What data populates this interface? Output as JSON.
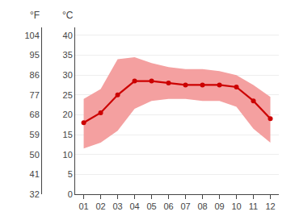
{
  "chart_data": {
    "type": "line",
    "x": [
      1,
      2,
      3,
      4,
      5,
      6,
      7,
      8,
      9,
      10,
      11,
      12
    ],
    "values": [
      18.0,
      20.5,
      25.0,
      28.5,
      28.5,
      28.0,
      27.5,
      27.5,
      27.5,
      27.0,
      23.5,
      19.0
    ],
    "min_values": [
      11.5,
      13.0,
      16.0,
      21.5,
      23.5,
      24.0,
      24.0,
      23.5,
      23.5,
      22.0,
      16.5,
      13.0
    ],
    "max_values": [
      24.0,
      26.5,
      34.0,
      34.5,
      33.0,
      32.0,
      31.5,
      31.5,
      31.0,
      30.0,
      27.5,
      24.5
    ],
    "color": "#cc0000",
    "band_color": "#f4a0a0",
    "marker": "circle",
    "xlim": [
      0.5,
      12.5
    ],
    "xticks": [
      {
        "value": 1,
        "label": "01"
      },
      {
        "value": 2,
        "label": "02"
      },
      {
        "value": 3,
        "label": "03"
      },
      {
        "value": 4,
        "label": "04"
      },
      {
        "value": 5,
        "label": "05"
      },
      {
        "value": 6,
        "label": "06"
      },
      {
        "value": 7,
        "label": "07"
      },
      {
        "value": 8,
        "label": "08"
      },
      {
        "value": 9,
        "label": "09"
      },
      {
        "value": 10,
        "label": "10"
      },
      {
        "value": 11,
        "label": "11"
      },
      {
        "value": 12,
        "label": "12"
      }
    ],
    "ylabel": "°C",
    "ylim": [
      0,
      42
    ],
    "yticks": [
      0,
      5,
      10,
      15,
      20,
      25,
      30,
      35,
      40
    ],
    "y2label": "°F",
    "y2lim": [
      32,
      107.6
    ],
    "y2ticks": [
      32,
      41,
      50,
      59,
      68,
      77,
      86,
      95,
      104
    ],
    "grid": true
  }
}
